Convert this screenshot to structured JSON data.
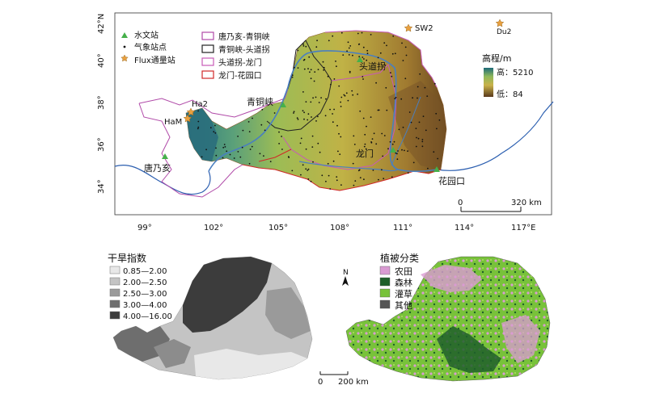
{
  "top_map": {
    "lat_labels": [
      "42°N",
      "40°",
      "38°",
      "36°",
      "34°"
    ],
    "lon_labels": [
      "99°",
      "102°",
      "105°",
      "108°",
      "111°",
      "114°",
      "117°E"
    ],
    "legend_left": {
      "hydro": "水文站",
      "met": "气象站点",
      "flux": "Flux通量站"
    },
    "legend_reaches": [
      {
        "label": "唐乃亥-青铜峡",
        "color": "#b04aa8"
      },
      {
        "label": "青铜峡-头道拐",
        "color": "#222222"
      },
      {
        "label": "头道拐-龙门",
        "color": "#c85ab8"
      },
      {
        "label": "龙门-花园口",
        "color": "#d02828"
      }
    ],
    "elev": {
      "title": "高程/m",
      "high": "高：5210",
      "low": "低：84"
    },
    "places": {
      "ha2": "Ha2",
      "ham": "HaM",
      "tnh": "唐乃亥",
      "qtx": "青铜峡",
      "tdg": "头道拐",
      "lm": "龙门",
      "hyk": "花园口",
      "sw2": "SW2",
      "du2": "Du2"
    },
    "scale": {
      "start": "0",
      "end": "320 km"
    }
  },
  "aridity_map": {
    "title": "干旱指数",
    "classes": [
      {
        "label": "0.85—2.00",
        "color": "#e8e8e8"
      },
      {
        "label": "2.00—2.50",
        "color": "#c4c4c4"
      },
      {
        "label": "2.50—3.00",
        "color": "#9a9a9a"
      },
      {
        "label": "3.00—4.00",
        "color": "#6e6e6e"
      },
      {
        "label": "4.00—16.00",
        "color": "#3c3c3c"
      }
    ],
    "scale": {
      "start": "0",
      "end": "200 km"
    }
  },
  "veg_map": {
    "title": "植被分类",
    "north": "N",
    "classes": [
      {
        "label": "农田",
        "color": "#d99bd2"
      },
      {
        "label": "森林",
        "color": "#1f5f2a"
      },
      {
        "label": "灌草",
        "color": "#78c23a"
      },
      {
        "label": "其他",
        "color": "#555555"
      }
    ]
  }
}
